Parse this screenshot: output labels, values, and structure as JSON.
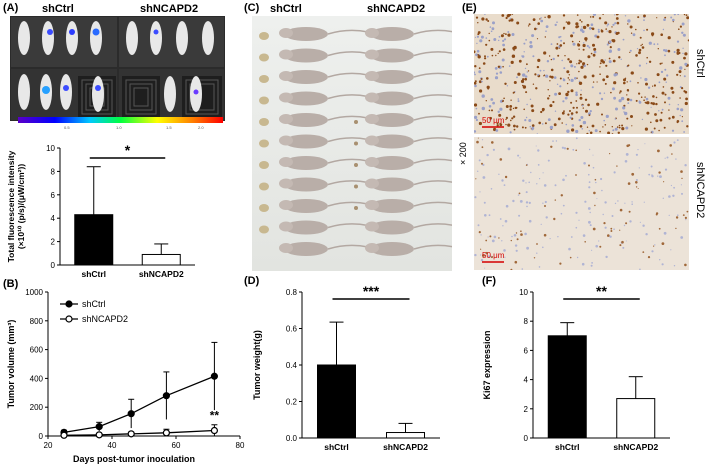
{
  "panels": {
    "A": {
      "label": "(A)",
      "groups": [
        "shCtrl",
        "shNCAPD2"
      ],
      "colorbar_ticks": [
        "0.5",
        "1.0",
        "1.5",
        "2.0"
      ]
    },
    "C": {
      "label": "(C)",
      "groups": [
        "shCtrl",
        "shNCAPD2"
      ]
    },
    "E": {
      "label": "(E)",
      "rows": [
        "shCtrl",
        "shNCAPD2"
      ],
      "magnification": "× 200",
      "scale_bar": "50 μm"
    },
    "B": {
      "label": "(B)"
    },
    "D": {
      "label": "(D)"
    },
    "F": {
      "label": "(F)"
    }
  },
  "chart_data": [
    {
      "id": "A",
      "type": "bar",
      "categories": [
        "shCtrl",
        "shNCAPD2"
      ],
      "values": [
        4.3,
        0.9
      ],
      "errors": [
        4.1,
        0.9
      ],
      "ylabel_line1": "Total fluorescence intensity",
      "ylabel_line2": "(×10¹⁰ (p/s)/(μW/cm²))",
      "ylim": [
        0,
        10
      ],
      "yticks": [
        "0",
        "2",
        "4",
        "6",
        "8",
        "10"
      ],
      "significance": "*",
      "colors": [
        "#000000",
        "#ffffff"
      ]
    },
    {
      "id": "B",
      "type": "line",
      "xlabel": "Days post-tumor inoculation",
      "ylabel": "Tumor volume (mm³)",
      "xlim": [
        20,
        80
      ],
      "ylim": [
        0,
        1000
      ],
      "xticks": [
        "20",
        "40",
        "60",
        "80"
      ],
      "yticks": [
        "0",
        "200",
        "400",
        "600",
        "800",
        "1000"
      ],
      "x": [
        25,
        36,
        46,
        57,
        72
      ],
      "series": [
        {
          "name": "shCtrl",
          "values": [
            25,
            65,
            155,
            280,
            415
          ],
          "errors": [
            15,
            30,
            100,
            165,
            235
          ],
          "marker": "filled"
        },
        {
          "name": "shNCAPD2",
          "values": [
            5,
            8,
            15,
            22,
            38
          ],
          "errors": [
            5,
            8,
            12,
            25,
            40
          ],
          "marker": "open"
        }
      ],
      "significance": "**",
      "significance_x": 72
    },
    {
      "id": "D",
      "type": "bar",
      "categories": [
        "shCtrl",
        "shNCAPD2"
      ],
      "values": [
        0.4,
        0.03
      ],
      "errors": [
        0.235,
        0.05
      ],
      "ylabel": "Tumor weight(g)",
      "ylim": [
        0,
        0.8
      ],
      "yticks": [
        "0.0",
        "0.2",
        "0.4",
        "0.6",
        "0.8"
      ],
      "significance": "***",
      "colors": [
        "#000000",
        "#ffffff"
      ]
    },
    {
      "id": "F",
      "type": "bar",
      "categories": [
        "shCtrl",
        "shNCAPD2"
      ],
      "values": [
        7.0,
        2.7
      ],
      "errors": [
        0.9,
        1.5
      ],
      "ylabel": "Ki67 expression",
      "ylim": [
        0,
        10
      ],
      "yticks": [
        "0",
        "2",
        "4",
        "6",
        "8",
        "10"
      ],
      "significance": "**",
      "colors": [
        "#000000",
        "#ffffff"
      ]
    }
  ]
}
